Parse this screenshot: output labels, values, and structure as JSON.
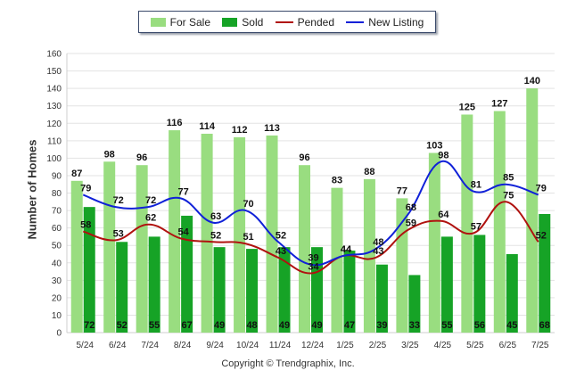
{
  "chart_data": {
    "type": "bar",
    "categories": [
      "5/24",
      "6/24",
      "7/24",
      "8/24",
      "9/24",
      "10/24",
      "11/24",
      "12/24",
      "1/25",
      "2/25",
      "3/25",
      "4/25",
      "5/25",
      "6/25",
      "7/25"
    ],
    "series": [
      {
        "name": "For Sale",
        "kind": "bar",
        "color": "#99dd80",
        "values": [
          87,
          98,
          96,
          116,
          114,
          112,
          113,
          96,
          83,
          88,
          77,
          103,
          125,
          127,
          140
        ]
      },
      {
        "name": "Sold",
        "kind": "bar",
        "color": "#16a326",
        "values": [
          72,
          52,
          55,
          67,
          49,
          48,
          49,
          49,
          47,
          39,
          33,
          55,
          56,
          45,
          68
        ]
      },
      {
        "name": "Pended",
        "kind": "line",
        "color": "#b0120f",
        "values": [
          58,
          53,
          62,
          54,
          52,
          51,
          43,
          34,
          44,
          43,
          59,
          64,
          57,
          75,
          52
        ]
      },
      {
        "name": "New Listing",
        "kind": "line",
        "color": "#1021d8",
        "values": [
          79,
          72,
          72,
          77,
          63,
          70,
          52,
          39,
          44,
          48,
          68,
          98,
          81,
          85,
          79
        ]
      }
    ],
    "ylabel": "Number of Homes",
    "xlabel": "",
    "ylim": [
      0,
      160
    ],
    "yticks": [
      0,
      10,
      20,
      30,
      40,
      50,
      60,
      70,
      80,
      90,
      100,
      110,
      120,
      130,
      140,
      150,
      160
    ],
    "grid": true,
    "legend_position": "top"
  },
  "footer": "Copyright © Trendgraphix, Inc."
}
